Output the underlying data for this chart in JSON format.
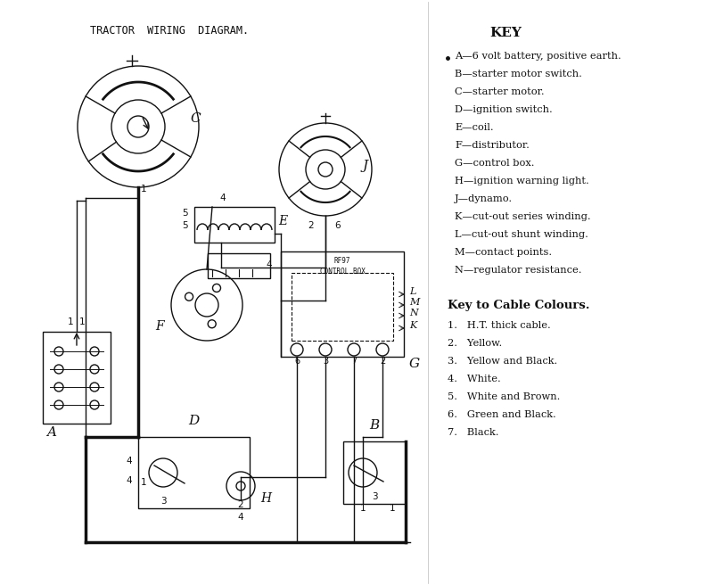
{
  "title": "TRACTOR  WIRING  DIAGRAM.",
  "key_title": "KEY",
  "key_items": [
    "A—6 volt battery, positive earth.",
    "B—starter motor switch.",
    "C—starter motor.",
    "D—ignition switch.",
    "E—coil.",
    "F—distributor.",
    "G—control box.",
    "H—ignition warning light.",
    "J—dynamo.",
    "K—cut-out series winding.",
    "L—cut-out shunt winding.",
    "M—contact points.",
    "N—regulator resistance."
  ],
  "cable_title": "Key to Cable Colours.",
  "cable_items": [
    "1.   H.T. thick cable.",
    "2.   Yellow.",
    "3.   Yellow and Black.",
    "4.   White.",
    "5.   White and Brown.",
    "6.   Green and Black.",
    "7.   Black."
  ]
}
